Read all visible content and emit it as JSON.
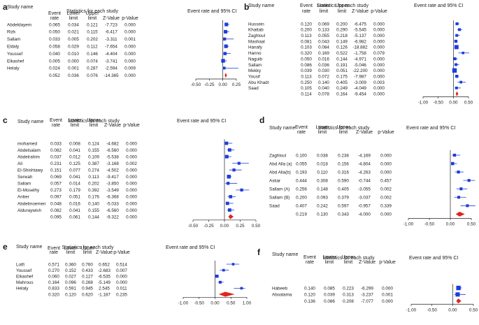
{
  "panels": [
    {
      "label": "a",
      "study_header": "Study name",
      "stats_header": "Statistics for each study",
      "plot_header": "Event rate and 95% CI",
      "columns": [
        "Event rate",
        "Lower limit",
        "Upper limit",
        "Z-Value",
        "p-Value"
      ],
      "xticks": [
        "-0.50",
        "-0.25",
        "0.00",
        "0.25"
      ],
      "xlim": [
        -0.5,
        0.25
      ],
      "studies": [
        {
          "name": "Abdeldayem",
          "er": "0.065",
          "ll": "0.034",
          "ul": "0.121",
          "z": "-7.723",
          "p": "0.000"
        },
        {
          "name": "Rizk",
          "er": "0.050",
          "ll": "0.021",
          "ul": "0.115",
          "z": "-6.417",
          "p": "0.000"
        },
        {
          "name": "Sallam",
          "er": "0.033",
          "ll": "0.005",
          "ul": "0.202",
          "z": "-3.311",
          "p": "0.001"
        },
        {
          "name": "Eldaly",
          "er": "0.058",
          "ll": "0.029",
          "ul": "0.112",
          "z": "-7.654",
          "p": "0.000"
        },
        {
          "name": "Youssef",
          "er": "0.040",
          "ll": "0.010",
          "ul": "0.146",
          "z": "-4.404",
          "p": "0.000"
        },
        {
          "name": "Elkashef",
          "er": "0.005",
          "ll": "0.000",
          "ul": "0.074",
          "z": "-3.741",
          "p": "0.000"
        },
        {
          "name": "Helaly",
          "er": "0.024",
          "ll": "0.001",
          "ul": "0.287",
          "z": "-2.594",
          "p": "0.009"
        }
      ],
      "pooled": {
        "er": "0.052",
        "ll": "0.036",
        "ul": "0.076",
        "z": "-14.365",
        "p": "0.000"
      }
    },
    {
      "label": "b",
      "study_header": "Study name",
      "stats_header": "Statistics for each study",
      "plot_header": "Event rate and 95% CI",
      "columns": [
        "Event rate",
        "Lower limit",
        "Upper limit",
        "Z-Value",
        "p-Value"
      ],
      "xticks": [
        "-1.00",
        "-0.50",
        "0.00",
        "0.50"
      ],
      "xlim": [
        -1.0,
        0.5
      ],
      "studies": [
        {
          "name": "Hussein",
          "er": "0.120",
          "ll": "0.069",
          "ul": "0.200",
          "z": "-6.475",
          "p": "0.000"
        },
        {
          "name": "Khattab",
          "er": "0.200",
          "ll": "0.133",
          "ul": "0.290",
          "z": "-5.545",
          "p": "0.000"
        },
        {
          "name": "Zaghloul",
          "er": "0.113",
          "ll": "0.055",
          "ul": "0.218",
          "z": "-5.137",
          "p": "0.000"
        },
        {
          "name": "Mashaal",
          "er": "0.081",
          "ll": "0.043",
          "ul": "0.149",
          "z": "-6.982",
          "p": "0.000"
        },
        {
          "name": "Hanafy",
          "er": "0.103",
          "ll": "0.084",
          "ul": "0.126",
          "z": "-18.882",
          "p": "0.000"
        },
        {
          "name": "Hanno",
          "er": "0.320",
          "ll": "0.169",
          "ul": "0.522",
          "z": "-1.758",
          "p": "0.079"
        },
        {
          "name": "Naguib",
          "er": "0.050",
          "ll": "0.016",
          "ul": "0.144",
          "z": "-4.971",
          "p": "0.000"
        },
        {
          "name": "Sallam",
          "er": "0.086",
          "ll": "0.036",
          "ul": "0.191",
          "z": "-5.046",
          "p": "0.000"
        },
        {
          "name": "Mekky",
          "er": "0.039",
          "ll": "0.030",
          "ul": "0.051",
          "z": "-22.200",
          "p": "0.000"
        },
        {
          "name": "Yousif",
          "er": "0.113",
          "ll": "0.072",
          "ul": "0.175",
          "z": "-7.987",
          "p": "0.000"
        },
        {
          "name": "Abu Khadr",
          "er": "0.250",
          "ll": "0.140",
          "ul": "0.405",
          "z": "-3.009",
          "p": "0.003"
        },
        {
          "name": "Saad",
          "er": "0.105",
          "ll": "0.040",
          "ul": "0.249",
          "z": "-4.049",
          "p": "0.000"
        }
      ],
      "pooled": {
        "er": "0.114",
        "ll": "0.078",
        "ul": "0.164",
        "z": "-9.454",
        "p": "0.000"
      }
    },
    {
      "label": "c",
      "study_header": "Study name",
      "stats_header": "Statistics for each study",
      "plot_header": "Event rate and 95% CI",
      "columns": [
        "Event rate",
        "Lower limit",
        "Upper limit",
        "Z-Value",
        "p-Value"
      ],
      "xticks": [
        "-0.50",
        "-0.25",
        "0.00",
        "0.25",
        "0.50"
      ],
      "xlim": [
        -0.5,
        0.5
      ],
      "studies": [
        {
          "name": "mohamed",
          "er": "0.033",
          "ll": "0.008",
          "ul": "0.124",
          "z": "-4.682",
          "p": "0.000"
        },
        {
          "name": "Abdelsalam",
          "er": "0.082",
          "ll": "0.041",
          "ul": "0.155",
          "z": "-6.560",
          "p": "0.000"
        },
        {
          "name": "Abdelrahim",
          "er": "0.037",
          "ll": "0.012",
          "ul": "0.109",
          "z": "-5.538",
          "p": "0.000"
        },
        {
          "name": "Ali",
          "er": "0.231",
          "ll": "0.125",
          "ul": "0.387",
          "z": "-3.168",
          "p": "0.002"
        },
        {
          "name": "El-Shishtawy",
          "er": "0.151",
          "ll": "0.077",
          "ul": "0.274",
          "z": "-4.502",
          "p": "0.000"
        },
        {
          "name": "Serwah",
          "er": "0.069",
          "ll": "0.041",
          "ul": "0.113",
          "z": "-9.417",
          "p": "0.000"
        },
        {
          "name": "Sallam",
          "er": "0.057",
          "ll": "0.014",
          "ul": "0.202",
          "z": "-3.850",
          "p": "0.000"
        },
        {
          "name": "El-Moselhy",
          "er": "0.273",
          "ll": "0.179",
          "ul": "0.392",
          "z": "-3.549",
          "p": "0.000"
        },
        {
          "name": "Anber",
          "er": "0.097",
          "ll": "0.051",
          "ul": "0.176",
          "z": "-6.368",
          "p": "0.000"
        },
        {
          "name": "Abdelmoemen",
          "er": "0.048",
          "ll": "0.016",
          "ul": "0.140",
          "z": "-5.033",
          "p": "0.000"
        },
        {
          "name": "Alduraywish",
          "er": "0.082",
          "ll": "0.041",
          "ul": "0.155",
          "z": "-6.560",
          "p": "0.000"
        }
      ],
      "pooled": {
        "er": "0.095",
        "ll": "0.061",
        "ul": "0.144",
        "z": "-9.322",
        "p": "0.000"
      }
    },
    {
      "label": "d",
      "study_header": "Study name",
      "stats_header": "Statistics for each study",
      "plot_header": "Event rate and 95% CI",
      "columns": [
        "Event rate",
        "Lower limit",
        "Upper limit",
        "Z-Value",
        "p-Value"
      ],
      "xticks": [
        "-1.00",
        "-0.50",
        "0.00",
        "0.50"
      ],
      "xlim": [
        -1.0,
        0.5
      ],
      "studies": [
        {
          "name": "Zaghloul",
          "er": "0.100",
          "ll": "0.038",
          "ul": "0.238",
          "z": "-4.169",
          "p": "0.000"
        },
        {
          "name": "Abd Alla (a)",
          "er": "0.055",
          "ll": "0.018",
          "ul": "0.156",
          "z": "-4.804",
          "p": "0.000"
        },
        {
          "name": "Abd Alla(b)",
          "er": "0.193",
          "ll": "0.110",
          "ul": "0.316",
          "z": "-4.263",
          "p": "0.000"
        },
        {
          "name": "Askar",
          "er": "0.444",
          "ll": "0.308",
          "ul": "0.590",
          "z": "-0.744",
          "p": "0.457"
        },
        {
          "name": "Sallam (A)",
          "er": "0.256",
          "ll": "0.148",
          "ul": "0.405",
          "z": "-3.055",
          "p": "0.002"
        },
        {
          "name": "Sallam (B)",
          "er": "0.200",
          "ll": "0.093",
          "ul": "0.379",
          "z": "-3.037",
          "p": "0.002"
        },
        {
          "name": "Saad",
          "er": "0.407",
          "ll": "0.242",
          "ul": "0.597",
          "z": "-0.957",
          "p": "0.339"
        }
      ],
      "pooled": {
        "er": "0.219",
        "ll": "0.130",
        "ul": "0.343",
        "z": "-4.000",
        "p": "0.000"
      }
    },
    {
      "label": "e",
      "study_header": "Study name",
      "stats_header": "Statistics for each study",
      "plot_header": "Event rate and 95% CI",
      "columns": [
        "Event rate",
        "Lower limit",
        "Upper limit",
        "Z-Value",
        "p-Value"
      ],
      "xticks": [
        "-1.00",
        "-0.50",
        "0.00",
        "0.50",
        "1.00"
      ],
      "xlim": [
        -1.0,
        1.0
      ],
      "studies": [
        {
          "name": "Lotfi",
          "er": "0.571",
          "ll": "0.360",
          "ul": "0.760",
          "z": "0.652",
          "p": "0.514"
        },
        {
          "name": "Youssef",
          "er": "0.270",
          "ll": "0.152",
          "ul": "0.433",
          "z": "-2.683",
          "p": "0.007"
        },
        {
          "name": "Elkashef",
          "er": "0.060",
          "ll": "0.027",
          "ul": "0.127",
          "z": "-6.535",
          "p": "0.000"
        },
        {
          "name": "Mahrous",
          "er": "0.164",
          "ll": "0.096",
          "ul": "0.268",
          "z": "-5.149",
          "p": "0.000"
        },
        {
          "name": "Helaly",
          "er": "0.833",
          "ll": "0.591",
          "ul": "0.945",
          "z": "2.545",
          "p": "0.011"
        }
      ],
      "pooled": {
        "er": "0.320",
        "ll": "0.120",
        "ul": "0.620",
        "z": "-1.187",
        "p": "0.235"
      }
    },
    {
      "label": "f",
      "study_header": "Study name",
      "stats_header": "Statistics for each study",
      "plot_header": "Event rate and 95% CI",
      "columns": [
        "Event rate",
        "Lower limit",
        "Upper limit",
        "Z-Value",
        "p-Value"
      ],
      "xticks": [
        "-1.00",
        "-0.50",
        "0.00",
        "0.50"
      ],
      "xlim": [
        -1.0,
        0.5
      ],
      "studies": [
        {
          "name": "Habeeb",
          "er": "0.140",
          "ll": "0.085",
          "ul": "0.223",
          "z": "-6.299",
          "p": "0.000"
        },
        {
          "name": "Aboalama",
          "er": "0.120",
          "ll": "0.039",
          "ul": "0.313",
          "z": "-3.237",
          "p": "0.001"
        }
      ],
      "pooled": {
        "er": "0.136",
        "ll": "0.086",
        "ul": "0.208",
        "z": "-7.077",
        "p": "0.000"
      }
    }
  ]
}
